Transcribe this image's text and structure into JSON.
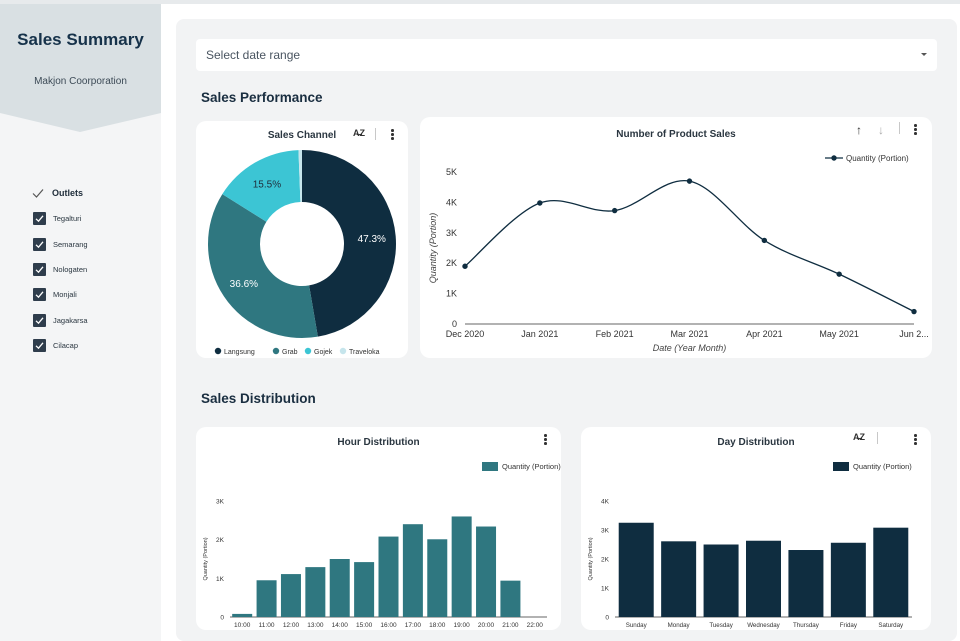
{
  "sidebar": {
    "title": "Sales Summary",
    "subtitle": "Makjon Coorporation",
    "filter_label": "Outlets",
    "outlets": [
      "Tegalturi",
      "Semarang",
      "Nologaten",
      "Monjali",
      "Jagakarsa",
      "Cilacap"
    ]
  },
  "date_range": {
    "placeholder": "Select date range"
  },
  "sections": {
    "performance": "Sales Performance",
    "distribution": "Sales Distribution"
  },
  "colors": {
    "navy": "#0f2d40",
    "teal": "#2f7780",
    "cyan": "#3cc5d4",
    "light": "#c6e5ec"
  },
  "chart_data": [
    {
      "id": "sales_channel",
      "type": "pie",
      "title": "Sales Channel",
      "legend_position": "bottom",
      "categories": [
        "Langsung",
        "Grab",
        "Gojek",
        "Traveloka"
      ],
      "values": [
        47.3,
        36.6,
        15.5,
        0.6
      ],
      "labels": [
        "47.3%",
        "36.6%",
        "15.5%",
        ""
      ]
    },
    {
      "id": "product_sales",
      "type": "line",
      "title": "Number of Product Sales",
      "xlabel": "Date (Year Month)",
      "ylabel": "Quantity (Portion)",
      "x": [
        "Dec 2020",
        "Jan 2021",
        "Feb 2021",
        "Mar 2021",
        "Apr 2021",
        "May 2021",
        "Jun 2..."
      ],
      "series": [
        {
          "name": "Quantity (Portion)",
          "values": [
            1900,
            3980,
            3730,
            4700,
            2750,
            1640,
            410
          ]
        }
      ],
      "ylim": [
        0,
        5000
      ],
      "yticks": [
        "0",
        "1K",
        "2K",
        "3K",
        "4K",
        "5K"
      ],
      "legend_position": "top-right"
    },
    {
      "id": "hour_distribution",
      "type": "bar",
      "title": "Hour Distribution",
      "xlabel": "",
      "ylabel": "Quantity (Portion)",
      "categories": [
        "10:00",
        "11:00",
        "12:00",
        "13:00",
        "14:00",
        "15:00",
        "16:00",
        "17:00",
        "18:00",
        "19:00",
        "20:00",
        "21:00",
        "22:00"
      ],
      "series": [
        {
          "name": "Quantity (Portion)",
          "values": [
            80,
            950,
            1110,
            1290,
            1500,
            1420,
            2080,
            2400,
            2010,
            2600,
            2340,
            940,
            0
          ]
        }
      ],
      "ylim": [
        0,
        3000
      ],
      "yticks": [
        "0",
        "1K",
        "2K",
        "3K"
      ],
      "legend_position": "top-right"
    },
    {
      "id": "day_distribution",
      "type": "bar",
      "title": "Day Distribution",
      "xlabel": "",
      "ylabel": "Quantity (Portion)",
      "categories": [
        "Sunday",
        "Monday",
        "Tuesday",
        "Wednesday",
        "Thursday",
        "Friday",
        "Saturday"
      ],
      "series": [
        {
          "name": "Quantity (Portion)",
          "values": [
            3250,
            2610,
            2500,
            2630,
            2310,
            2560,
            3080
          ]
        }
      ],
      "ylim": [
        0,
        4000
      ],
      "yticks": [
        "0",
        "1K",
        "2K",
        "3K",
        "4K"
      ],
      "legend_position": "top-right"
    }
  ]
}
